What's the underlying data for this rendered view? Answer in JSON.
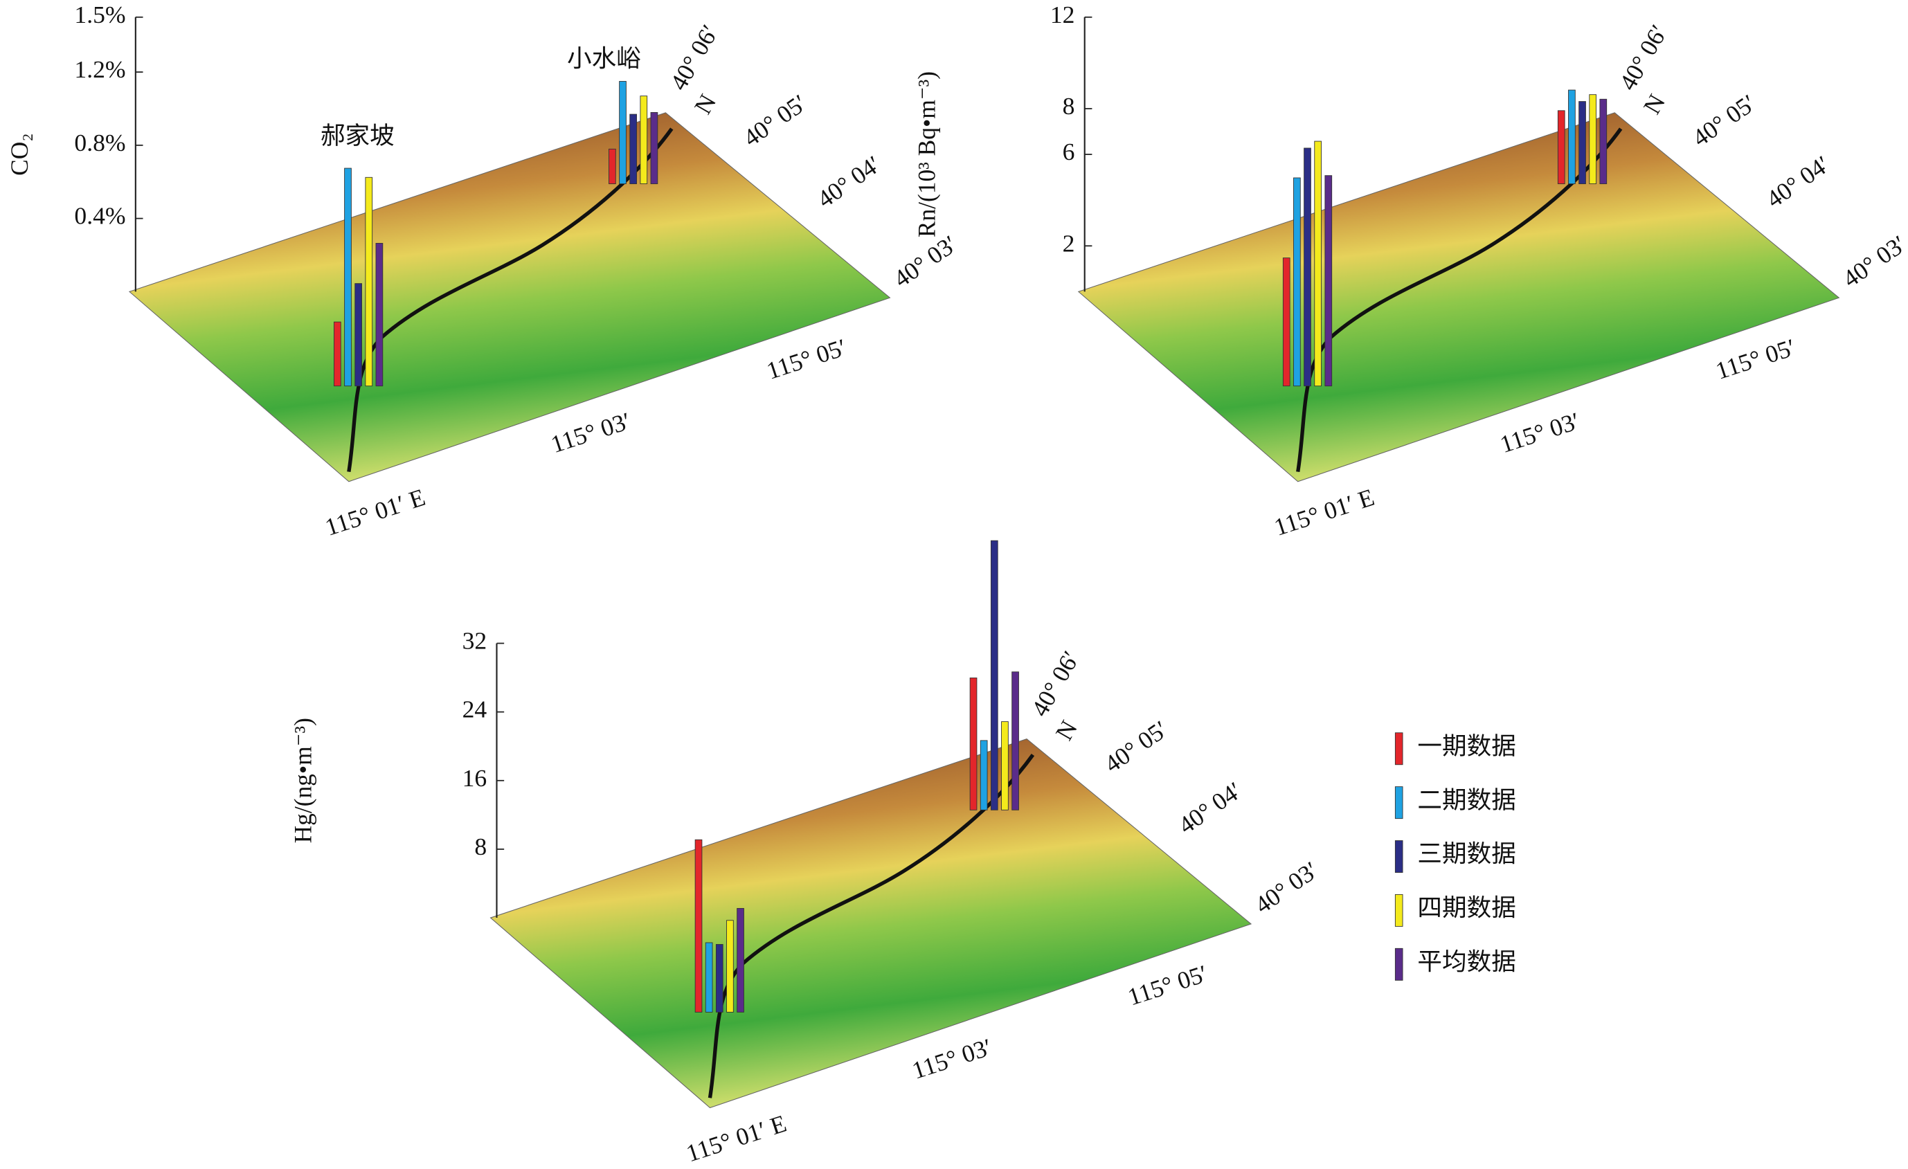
{
  "chart_data": [
    {
      "type": "bar",
      "y_label": "CO₂",
      "categories": [
        "郝家坡",
        "小水峪"
      ],
      "series": [
        {
          "color": "#e3262b",
          "values": [
            0.35,
            0.19
          ]
        },
        {
          "color": "#1fa2e2",
          "values": [
            1.19,
            0.56
          ]
        },
        {
          "color": "#2b2e86",
          "values": [
            0.56,
            0.38
          ]
        },
        {
          "color": "#f4ea1c",
          "values": [
            1.14,
            0.48
          ]
        },
        {
          "color": "#5a2c8a",
          "values": [
            0.78,
            0.39
          ]
        }
      ],
      "ylim": [
        0,
        1.5
      ],
      "yticks": [
        {
          "value": 0.4,
          "label": "0.4%"
        },
        {
          "value": 0.8,
          "label": "0.8%"
        },
        {
          "value": 1.2,
          "label": "1.2%"
        },
        {
          "value": 1.5,
          "label": "1.5%"
        }
      ],
      "map_labels": {
        "x": [
          "115° 01′ E",
          "115° 03′",
          "115° 05′"
        ],
        "y": [
          "40° 03′",
          "40° 04′",
          "40° 05′",
          "40° 06′"
        ],
        "north": "N"
      }
    },
    {
      "type": "bar",
      "y_label": "Rn/(10³ Bq•m⁻³)",
      "series": [
        {
          "color": "#e3262b",
          "values": [
            5.6,
            3.2
          ]
        },
        {
          "color": "#1fa2e2",
          "values": [
            9.1,
            4.1
          ]
        },
        {
          "color": "#2b2e86",
          "values": [
            10.4,
            3.6
          ]
        },
        {
          "color": "#f4ea1c",
          "values": [
            10.7,
            3.9
          ]
        },
        {
          "color": "#5a2c8a",
          "values": [
            9.2,
            3.7
          ]
        }
      ],
      "ylim": [
        0,
        12
      ],
      "yticks": [
        2,
        6,
        8,
        12
      ],
      "map_labels": {
        "x": [
          "115° 01′ E",
          "115° 03′",
          "115° 05′"
        ],
        "y": [
          "40° 03′",
          "40° 04′",
          "40° 05′",
          "40° 06′"
        ],
        "north": "N"
      }
    },
    {
      "type": "bar",
      "y_label": "Hg/(ng•m⁻³)",
      "series": [
        {
          "name": "一期数据",
          "color": "#e3262b",
          "values": [
            20.1,
            15.4
          ]
        },
        {
          "name": "二期数据",
          "color": "#1fa2e2",
          "values": [
            8.1,
            8.1
          ]
        },
        {
          "name": "三期数据",
          "color": "#2b2e86",
          "values": [
            7.9,
            31.4
          ]
        },
        {
          "name": "四期数据",
          "color": "#f4ea1c",
          "values": [
            10.7,
            10.3
          ]
        },
        {
          "name": "平均数据",
          "color": "#5a2c8a",
          "values": [
            12.1,
            16.1
          ]
        }
      ],
      "ylim": [
        0,
        32
      ],
      "yticks": [
        8,
        16,
        24,
        32
      ],
      "map_labels": {
        "x": [
          "115° 01′ E",
          "115° 03′",
          "115° 05′"
        ],
        "y": [
          "40° 03′",
          "40° 04′",
          "40° 05′",
          "40° 06′"
        ],
        "north": "N"
      }
    }
  ]
}
